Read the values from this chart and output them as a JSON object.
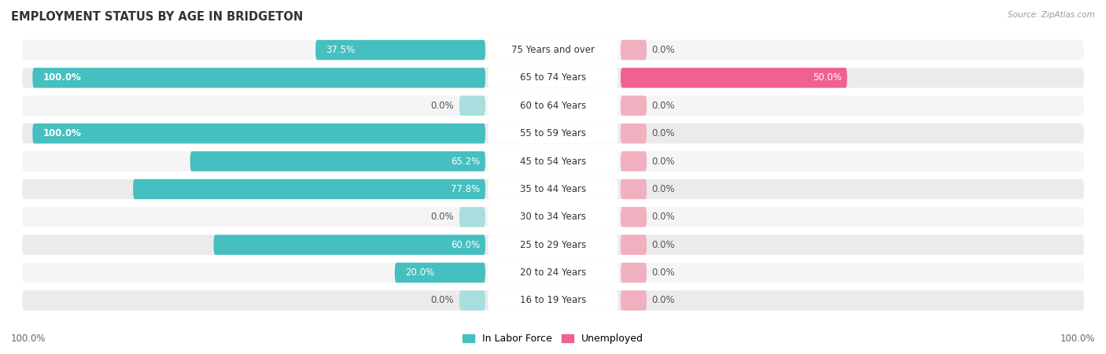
{
  "title": "EMPLOYMENT STATUS BY AGE IN BRIDGETON",
  "source": "Source: ZipAtlas.com",
  "categories": [
    "16 to 19 Years",
    "20 to 24 Years",
    "25 to 29 Years",
    "30 to 34 Years",
    "35 to 44 Years",
    "45 to 54 Years",
    "55 to 59 Years",
    "60 to 64 Years",
    "65 to 74 Years",
    "75 Years and over"
  ],
  "labor_force": [
    37.5,
    100.0,
    0.0,
    100.0,
    65.2,
    77.8,
    0.0,
    60.0,
    20.0,
    0.0
  ],
  "unemployed": [
    0.0,
    50.0,
    0.0,
    0.0,
    0.0,
    0.0,
    0.0,
    0.0,
    0.0,
    0.0
  ],
  "labor_force_color": "#45bfbf",
  "labor_force_color_light": "#a8dede",
  "unemployed_color": "#f06090",
  "unemployed_color_light": "#f0b0c0",
  "row_bg_color_light": "#f5f5f5",
  "row_bg_color_dark": "#ebebeb",
  "label_box_color": "#ffffff",
  "title_fontsize": 10.5,
  "label_fontsize": 8.5,
  "cat_fontsize": 8.5,
  "tick_fontsize": 8.5,
  "legend_fontsize": 9,
  "background_color": "#ffffff",
  "nub_size": 5.0,
  "max_val": 100.0
}
